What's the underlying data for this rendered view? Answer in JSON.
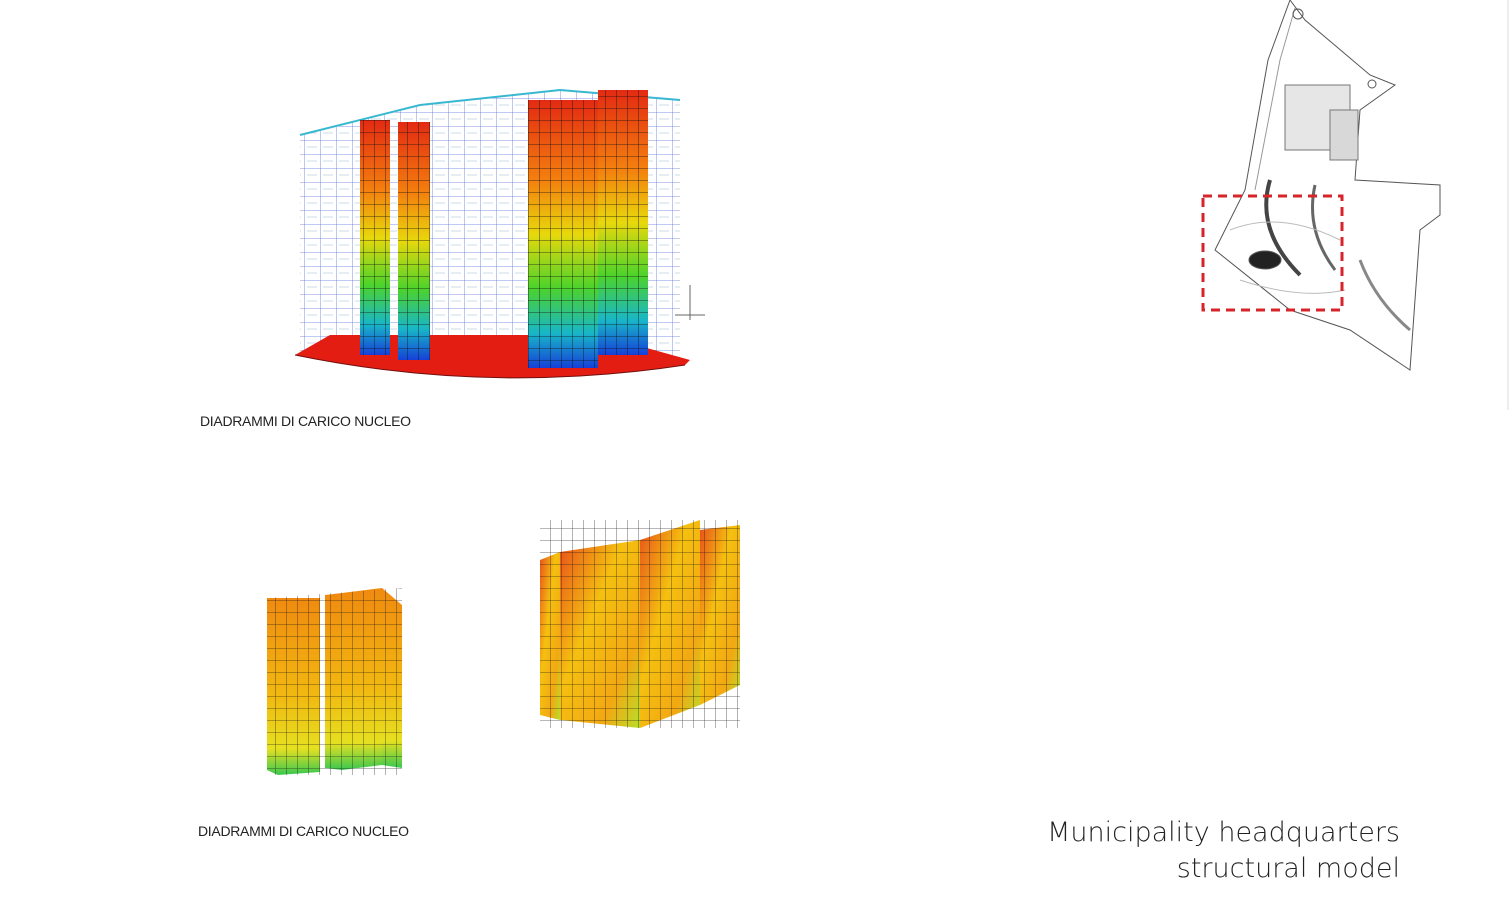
{
  "captions": [
    "DIADRAMMI DI CARICO NUCLEO",
    "DIADRAMMI DI CARICO NUCLEO"
  ],
  "title": {
    "lines": [
      "Municipality headquarters",
      "structural model"
    ]
  }
}
